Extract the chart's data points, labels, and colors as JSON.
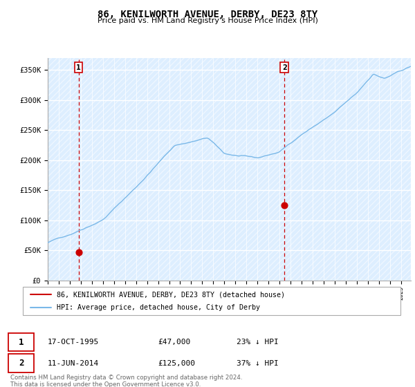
{
  "title": "86, KENILWORTH AVENUE, DERBY, DE23 8TY",
  "subtitle": "Price paid vs. HM Land Registry's House Price Index (HPI)",
  "legend_line1": "86, KENILWORTH AVENUE, DERBY, DE23 8TY (detached house)",
  "legend_line2": "HPI: Average price, detached house, City of Derby",
  "annotation1_date": "17-OCT-1995",
  "annotation1_price": "£47,000",
  "annotation1_hpi": "23% ↓ HPI",
  "annotation2_date": "11-JUN-2014",
  "annotation2_price": "£125,000",
  "annotation2_hpi": "37% ↓ HPI",
  "footer": "Contains HM Land Registry data © Crown copyright and database right 2024.\nThis data is licensed under the Open Government Licence v3.0.",
  "hpi_color": "#7ab8e8",
  "price_color": "#cc0000",
  "vline_color": "#cc0000",
  "bg_hatch_color": "#ddeeff",
  "ylim": [
    0,
    370000
  ],
  "yticks": [
    0,
    50000,
    100000,
    150000,
    200000,
    250000,
    300000,
    350000
  ],
  "ytick_labels": [
    "£0",
    "£50K",
    "£100K",
    "£150K",
    "£200K",
    "£250K",
    "£300K",
    "£350K"
  ],
  "sale1_x": 1995.79,
  "sale1_y": 47000,
  "sale2_x": 2014.45,
  "sale2_y": 125000,
  "xmin": 1993.0,
  "xmax": 2025.9
}
